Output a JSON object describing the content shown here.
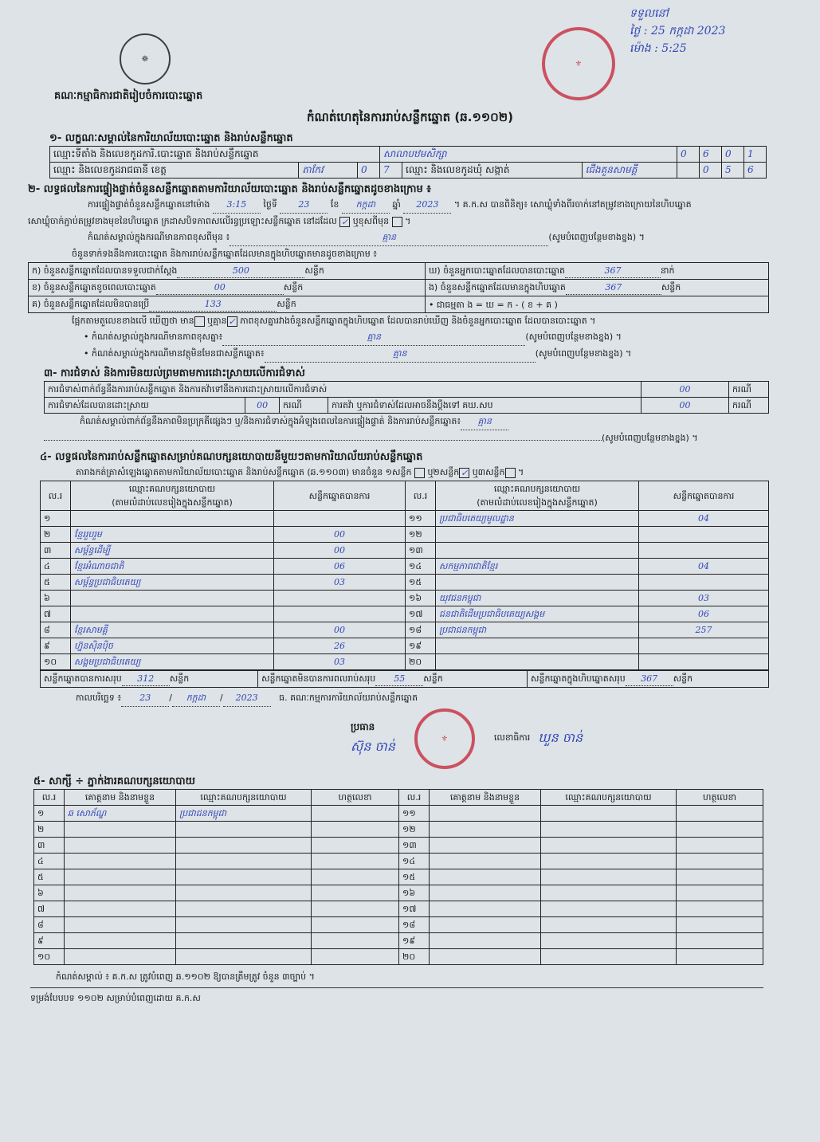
{
  "header": {
    "org": "គណៈកម្មាធិការជាតិរៀបចំការបោះឆ្នោត",
    "title": "កំណត់ហេតុនៃការរាប់សន្លឹកឆ្នោត (ឆ.១១០២)"
  },
  "receipt": {
    "line1": "ទទួលនៅ",
    "line2": "ថ្ងៃ : 25 កក្កដា 2023",
    "line3": "ម៉ោង : 5:25"
  },
  "s1": {
    "title": "១- លក្ខណៈសម្គាល់នៃការិយាល័យបោះឆ្នោត និងរាប់សន្លឹកឆ្នោត",
    "office_label": "ឈ្មោះទីតាំង និងលេខកូដការិ.បោះឆ្នោត និងរាប់សន្លឹកឆ្នោត",
    "office_value": "សាលាបឋមសិក្សា",
    "office_code": [
      "0",
      "6",
      "0",
      "1"
    ],
    "province_label": "ឈ្មោះ និងលេខកូដរាជធានី ខេត្ត",
    "province_value": "តាកែវ",
    "province_code": [
      "0",
      "7"
    ],
    "commune_label": "ឈ្មោះ និងលេខកូដឃុំ សង្កាត់",
    "commune_value": "ជើងគួនសាមគ្គី",
    "commune_code": [
      "0",
      "5",
      "6"
    ]
  },
  "s2": {
    "title": "២- លទ្ធផលនៃការផ្ទៀងផ្ទាត់ចំនួនសន្លឹកឆ្នោតតាមការិយាល័យបោះឆ្នោត និងរាប់សន្លឹកឆ្នោតដូចខាងក្រោម ៖",
    "p1a": "ការផ្ទៀងផ្ទាត់ចំនួនសន្លឹកឆ្នោតនៅម៉ោង",
    "time": "3:15",
    "p1b": "ថ្ងៃទី",
    "day": "23",
    "p1c": "ខែ",
    "month": "កក្កដា",
    "p1d": "ឆ្នាំ",
    "year": "2023",
    "p1e": "។ គ.ក.ស បានពិនិត្យ៖ សោឃ្លុំទាំងពីរចាក់នៅតម្រូវខាងក្រោយនៃហិបឆ្នោត",
    "p2": "សោឃ្លុំចាក់ភ្ជាប់តម្រូវខាងមុខនៃហិបឆ្នោត ក្រដាសបិទភាពសលើរន្ធប្រឡោះសន្លឹកឆ្នោត នៅដដែល",
    "same_checked": true,
    "p2b": "ឬខុសពីមុន",
    "p2c": "។",
    "note1_label": "កំណត់សម្គាល់ក្នុងករណីមានភាពខុសពីមុន ៖",
    "note1_value": "គ្មាន",
    "fill_more": "(សូមបំពេញបន្ថែមខាងខ្នង) ។",
    "p3": "ចំនួនទាក់ទងនឹងការបោះឆ្នោត និងការរាប់សន្លឹកឆ្នោតដែលមានក្នុងហិបឆ្នោតមានដូចខាងក្រោម ៖",
    "rows": [
      {
        "label": "ក) ចំនួនសន្លឹកឆ្នោតដែលបានទទួលជាក់ស្តែង",
        "value": "500",
        "unit": "សន្លឹក"
      },
      {
        "label": "ខ) ចំនួនសន្លឹកឆ្នោតខូចពេលបោះឆ្នោត",
        "value": "00",
        "unit": "សន្លឹក"
      },
      {
        "label": "គ) ចំនួនសន្លឹកឆ្នោតដែលមិនបានប្រើ",
        "value": "133",
        "unit": "សន្លឹក"
      },
      {
        "label": "ឃ) ចំនួនអ្នកបោះឆ្នោតដែលបានបោះឆ្នោត",
        "value": "367",
        "unit": "នាក់"
      },
      {
        "label": "ង) ចំនួនសន្លឹកឆ្នោតដែលមានក្នុងហិបឆ្នោត",
        "value": "367",
        "unit": "សន្លឹក"
      }
    ],
    "formula": "•   ជាធម្មតា ង = ឃ = ក - ( ខ + គ )",
    "p4a": "ផ្អែកតាមតួលេខខាងលើ ឃើញថា មាន",
    "p4b": "ឬគ្មាន",
    "has_diff_checked": false,
    "no_diff_checked": true,
    "p4c": "ភាពខុសគ្នារវាងចំនួនសន្លឹកឆ្នោតក្នុងហិបឆ្នោត ដែលបានរាប់ឃើញ និងចំនួនអ្នកបោះឆ្នោត ដែលបានបោះឆ្នោត ។",
    "note2_label": "• កំណត់សម្គាល់ក្នុងករណីមានភាពខុសគ្នា៖",
    "note2_value": "គ្មាន",
    "note3_label": "• កំណត់សម្គាល់ក្នុងករណីមានវត្ថុមិនមែនជាសន្លឹកឆ្នោត៖",
    "note3_value": "គ្មាន"
  },
  "s3": {
    "title": "៣- ការជំទាស់ និងការមិនយល់ព្រមតាមការដោះស្រាយលើការជំទាស់",
    "r1_label": "ការជំទាស់ពាក់ព័ន្ធនឹងការរាប់សន្លឹកឆ្នោត និងការតវ៉ាទៅនឹងការដោះស្រាយលើការជំទាស់",
    "r1_value": "00",
    "unit": "ករណី",
    "r2_label": "ការជំទាស់ដែលបានដោះស្រាយ",
    "r2_value": "00",
    "r3_label": "ការតវ៉ា ឬការជំទាស់ដែលអាចនឹងប្តឹងទៅ គឃ.សប",
    "r3_value": "00",
    "note_label": "កំណត់សម្គាល់ពាក់ព័ន្ធនឹងភាពមិនប្រក្រតីផ្សេងៗ ឬ/និងការជំទាស់ក្នុងអំឡុងពេលនៃការផ្ទៀងផ្ទាត់ និងការរាប់សន្លឹកឆ្នោត៖",
    "note_value": "គ្មាន"
  },
  "s4": {
    "title": "៤- លទ្ធផលនៃការរាប់សន្លឹកឆ្នោតសម្រាប់គណបក្សនយោបាយនីមួយៗតាមការិយាល័យរាប់សន្លឹកឆ្នោត",
    "sub_a": "តារាងកត់ត្រាសំឡេងឆ្នោតតាមការិយាល័យបោះឆ្នោត និងរាប់សន្លឹកឆ្នោត (ឆ.១១០៣) មានចំនួន ១សន្លឹក",
    "sub_b": "ឬ២សន្លឹក",
    "sub_c": "ឬ៣សន្លឹក",
    "sub_d": "។",
    "col_no": "ល.រ",
    "col_party": "ឈ្មោះគណបក្សនយោបាយ",
    "col_party2": "(តាមលំដាប់លេខរៀងក្នុងសន្លឹកឆ្នោត)",
    "col_votes": "សន្លឹកឆ្នោតបានការ",
    "left": [
      {
        "no": "១",
        "party": "",
        "votes": ""
      },
      {
        "no": "២",
        "party": "ខ្មែររួបរួម",
        "votes": "00"
      },
      {
        "no": "៣",
        "party": "សម្ព័ន្ធដើម្បី",
        "votes": "00"
      },
      {
        "no": "៤",
        "party": "ខ្មែរអំណាចជាតិ",
        "votes": "06"
      },
      {
        "no": "៥",
        "party": "សម្ព័ន្ធប្រជាធិបតេយ្យ",
        "votes": "03"
      },
      {
        "no": "៦",
        "party": "",
        "votes": ""
      },
      {
        "no": "៧",
        "party": "",
        "votes": ""
      },
      {
        "no": "៨",
        "party": "ខ្មែរសាមគ្គី",
        "votes": "00"
      },
      {
        "no": "៩",
        "party": "ហ្វ៊ុនស៊ិនប៉ិច",
        "votes": "26"
      },
      {
        "no": "១០",
        "party": "សង្គមប្រជាធិបតេយ្យ",
        "votes": "03"
      }
    ],
    "right": [
      {
        "no": "១១",
        "party": "ប្រជាធិបតេយ្យមូលដ្ឋាន",
        "votes": "04"
      },
      {
        "no": "១២",
        "party": "",
        "votes": ""
      },
      {
        "no": "១៣",
        "party": "",
        "votes": ""
      },
      {
        "no": "១៤",
        "party": "សកម្មភាពជាតិខ្មែរ",
        "votes": "04"
      },
      {
        "no": "១៥",
        "party": "",
        "votes": ""
      },
      {
        "no": "១៦",
        "party": "យុវជនកម្ពុជា",
        "votes": "03"
      },
      {
        "no": "១៧",
        "party": "ជនជាតិដើមប្រជាធិបតេយ្យសង្គម",
        "votes": "06"
      },
      {
        "no": "១៨",
        "party": "ប្រជាជនកម្ពុជា",
        "votes": "257"
      },
      {
        "no": "១៩",
        "party": "",
        "votes": ""
      },
      {
        "no": "២០",
        "party": "",
        "votes": ""
      }
    ],
    "total_valid_label": "សន្លឹកឆ្នោតបានការសរុប",
    "total_valid": "312",
    "total_invalid_label": "សន្លឹកឆ្នោតមិនបានការពលរាប់សរុប",
    "total_invalid": "55",
    "total_box_label": "សន្លឹកឆ្នោតក្នុងហិបឆ្នោតសរុប",
    "total_box": "367",
    "unit": "សន្លឹក",
    "date_label": "កាលបរិច្ឆេទ ៖",
    "date_d": "23",
    "date_m": "កក្កដា",
    "date_y": "2023",
    "committee": "ធ. គណៈកម្មការការិយាល័យរាប់សន្លឹកឆ្នោត",
    "chair": "ប្រធាន",
    "chair_name": "ស៊ុន ចាន់",
    "secretary": "លេខាធិការ",
    "secretary_name": "ឃួន ចាន់"
  },
  "s5": {
    "title": "៥- សាក្សី ÷ ភ្នាក់ងារគណបក្សនយោបាយ",
    "col_no": "ល.រ",
    "col_name": "គោត្តនាម និងនាមខ្លួន",
    "col_party": "ឈ្មោះគណបក្សនយោបាយ",
    "col_sign": "ហត្ថលេខា",
    "left_nos": [
      "១",
      "២",
      "៣",
      "៤",
      "៥",
      "៦",
      "៧",
      "៨",
      "៩",
      "១០"
    ],
    "right_nos": [
      "១១",
      "១២",
      "១៣",
      "១៤",
      "១៥",
      "១៦",
      "១៧",
      "១៨",
      "១៩",
      "២០"
    ],
    "entry1_name": "ឆ សោភ័ណ្ឌ",
    "entry1_party": "ប្រជាជនកម្ពុជា"
  },
  "footer": {
    "note": "កំណត់សម្គាល់ ៖ គ.ក.ស ត្រូវបំពេញ ឆ.១១០២ ឱ្យបានត្រឹមត្រូវ ចំនួន ៣ច្បាប់ ។",
    "form": "ទម្រង់បែបបទ ១១០២ សម្រាប់បំពេញដោយ គ.ក.ស"
  },
  "colors": {
    "ink": "#3346b8",
    "seal": "#c8384a",
    "paper": "#dde3e6"
  }
}
